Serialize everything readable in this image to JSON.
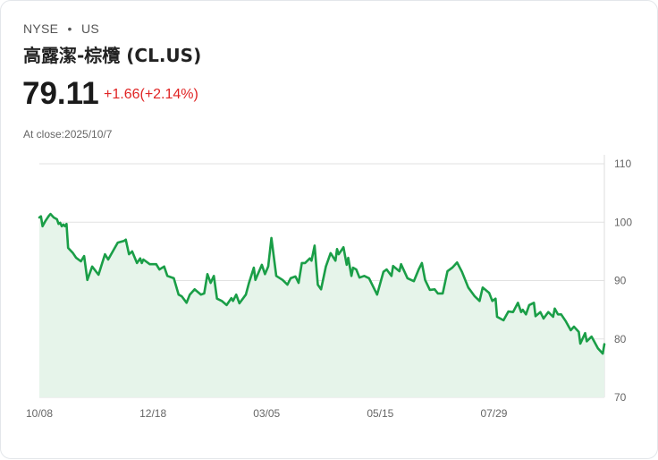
{
  "header": {
    "exchange": "NYSE",
    "separator": "•",
    "region": "US",
    "title": "高露潔-棕欖 (CL.US)",
    "price": "79.11",
    "change": "+1.66(+2.14%)",
    "close_label": "At close:2025/10/7"
  },
  "colors": {
    "line": "#1a9e47",
    "fill": "#e6f4ea",
    "down": "#e02424",
    "grid": "#e2e2e2"
  },
  "chart_data": {
    "type": "area",
    "xlabel": "",
    "ylabel": "",
    "ylim": [
      70,
      110
    ],
    "xlim": [
      0,
      353
    ],
    "grid": true,
    "y_axis_position": "right",
    "yticks": [
      70,
      80,
      90,
      100,
      110
    ],
    "xticks": [
      {
        "day": 0,
        "label": "10/08"
      },
      {
        "day": 71,
        "label": "12/18"
      },
      {
        "day": 142,
        "label": "03/05"
      },
      {
        "day": 213,
        "label": "05/15"
      },
      {
        "day": 284,
        "label": "07/29"
      }
    ],
    "points": [
      [
        0,
        100.8
      ],
      [
        1,
        101.0
      ],
      [
        2,
        99.3
      ],
      [
        4,
        100.3
      ],
      [
        6,
        101.1
      ],
      [
        7,
        101.4
      ],
      [
        9,
        100.8
      ],
      [
        11,
        100.5
      ],
      [
        12,
        99.7
      ],
      [
        13,
        99.9
      ],
      [
        14,
        99.3
      ],
      [
        15,
        99.6
      ],
      [
        16,
        99.3
      ],
      [
        17,
        99.7
      ],
      [
        18,
        95.6
      ],
      [
        21,
        94.7
      ],
      [
        23,
        93.9
      ],
      [
        26,
        93.3
      ],
      [
        28,
        94.2
      ],
      [
        30,
        90.1
      ],
      [
        33,
        92.4
      ],
      [
        37,
        91.0
      ],
      [
        41,
        94.5
      ],
      [
        43,
        93.6
      ],
      [
        49,
        96.5
      ],
      [
        53,
        96.8
      ],
      [
        54,
        97.0
      ],
      [
        56,
        94.5
      ],
      [
        58,
        95.0
      ],
      [
        61,
        93.0
      ],
      [
        63,
        93.8
      ],
      [
        64,
        93.0
      ],
      [
        65,
        93.6
      ],
      [
        69,
        92.8
      ],
      [
        73,
        92.8
      ],
      [
        75,
        91.9
      ],
      [
        78,
        92.4
      ],
      [
        80,
        90.8
      ],
      [
        84,
        90.4
      ],
      [
        87,
        87.6
      ],
      [
        89,
        87.3
      ],
      [
        92,
        86.2
      ],
      [
        94,
        87.6
      ],
      [
        97,
        88.5
      ],
      [
        101,
        87.6
      ],
      [
        103,
        87.8
      ],
      [
        105,
        91.1
      ],
      [
        107,
        89.6
      ],
      [
        109,
        90.8
      ],
      [
        111,
        86.9
      ],
      [
        114,
        86.5
      ],
      [
        117,
        85.8
      ],
      [
        120,
        87.0
      ],
      [
        121,
        86.5
      ],
      [
        123,
        87.6
      ],
      [
        125,
        86.1
      ],
      [
        129,
        87.6
      ],
      [
        131,
        89.6
      ],
      [
        134,
        92.2
      ],
      [
        135,
        90.1
      ],
      [
        139,
        92.7
      ],
      [
        141,
        91.1
      ],
      [
        143,
        92.4
      ],
      [
        145,
        97.3
      ],
      [
        148,
        90.8
      ],
      [
        152,
        90.1
      ],
      [
        155,
        89.3
      ],
      [
        157,
        90.4
      ],
      [
        160,
        90.7
      ],
      [
        162,
        89.6
      ],
      [
        164,
        93.0
      ],
      [
        166,
        93.0
      ],
      [
        169,
        93.8
      ],
      [
        170,
        93.4
      ],
      [
        172,
        96.0
      ],
      [
        174,
        89.3
      ],
      [
        176,
        88.5
      ],
      [
        179,
        92.4
      ],
      [
        182,
        94.7
      ],
      [
        185,
        93.4
      ],
      [
        186,
        95.4
      ],
      [
        187,
        94.5
      ],
      [
        190,
        95.7
      ],
      [
        192,
        92.7
      ],
      [
        193,
        93.9
      ],
      [
        195,
        90.8
      ],
      [
        196,
        92.2
      ],
      [
        198,
        91.9
      ],
      [
        200,
        90.5
      ],
      [
        203,
        90.8
      ],
      [
        206,
        90.4
      ],
      [
        211,
        87.6
      ],
      [
        215,
        91.5
      ],
      [
        217,
        91.9
      ],
      [
        220,
        90.8
      ],
      [
        221,
        92.5
      ],
      [
        225,
        91.6
      ],
      [
        226,
        92.8
      ],
      [
        230,
        90.4
      ],
      [
        234,
        89.9
      ],
      [
        237,
        91.9
      ],
      [
        239,
        93.0
      ],
      [
        241,
        90.1
      ],
      [
        244,
        88.4
      ],
      [
        247,
        88.5
      ],
      [
        249,
        87.8
      ],
      [
        252,
        87.8
      ],
      [
        255,
        91.6
      ],
      [
        258,
        92.2
      ],
      [
        261,
        93.1
      ],
      [
        264,
        91.5
      ],
      [
        268,
        88.8
      ],
      [
        272,
        87.3
      ],
      [
        275,
        86.5
      ],
      [
        277,
        88.8
      ],
      [
        281,
        87.9
      ],
      [
        283,
        86.5
      ],
      [
        285,
        86.9
      ],
      [
        286,
        83.8
      ],
      [
        290,
        83.2
      ],
      [
        293,
        84.7
      ],
      [
        296,
        84.6
      ],
      [
        299,
        86.2
      ],
      [
        301,
        84.6
      ],
      [
        302,
        85.0
      ],
      [
        304,
        84.2
      ],
      [
        306,
        85.8
      ],
      [
        309,
        86.2
      ],
      [
        310,
        83.9
      ],
      [
        313,
        84.6
      ],
      [
        315,
        83.5
      ],
      [
        318,
        84.6
      ],
      [
        321,
        83.8
      ],
      [
        322,
        85.2
      ],
      [
        324,
        84.2
      ],
      [
        326,
        84.2
      ],
      [
        329,
        83.0
      ],
      [
        332,
        81.5
      ],
      [
        334,
        82.1
      ],
      [
        337,
        81.2
      ],
      [
        338,
        79.2
      ],
      [
        341,
        81.0
      ],
      [
        342,
        79.6
      ],
      [
        345,
        80.4
      ],
      [
        349,
        78.4
      ],
      [
        352,
        77.5
      ],
      [
        353,
        79.11
      ]
    ]
  }
}
